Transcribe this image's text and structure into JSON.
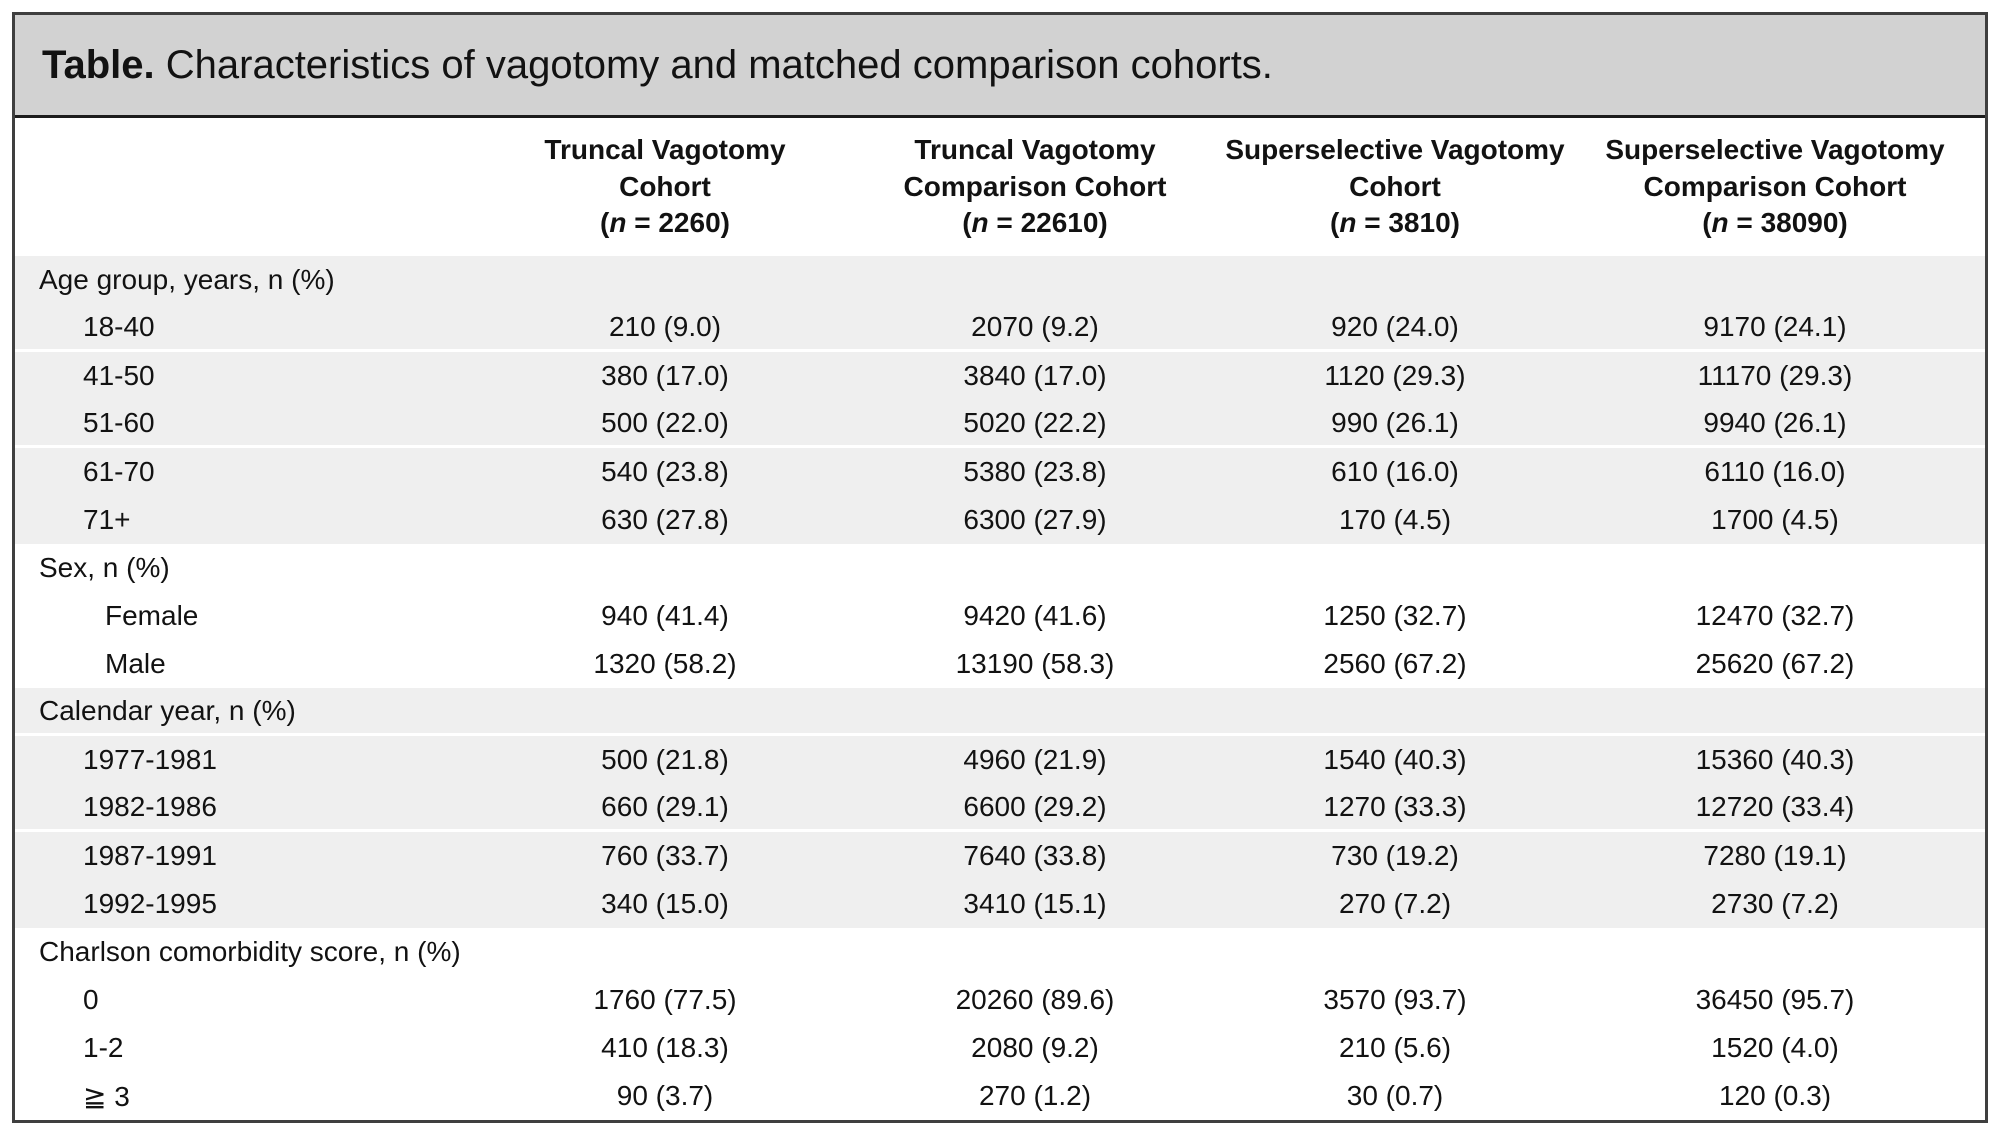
{
  "title": {
    "prefix": "Table.",
    "text": " Characteristics of vagotomy and matched comparison cohorts."
  },
  "table": {
    "columns": [
      {
        "line1": "Truncal Vagotomy",
        "line2": "Cohort",
        "n_open": "(",
        "n_symbol": "n",
        "n_rest": " = 2260)"
      },
      {
        "line1": "Truncal Vagotomy",
        "line2": "Comparison Cohort",
        "n_open": "(",
        "n_symbol": "n",
        "n_rest": " = 22610)"
      },
      {
        "line1": "Superselective Vagotomy",
        "line2": "Cohort",
        "n_open": "(",
        "n_symbol": "n",
        "n_rest": " = 3810)"
      },
      {
        "line1": "Superselective Vagotomy",
        "line2": "Comparison Cohort",
        "n_open": "(",
        "n_symbol": "n",
        "n_rest": " = 38090)"
      }
    ],
    "sections": [
      {
        "label": "Age group, years, n (%)",
        "shaded": true,
        "divider_after_header": false,
        "divider_after_rows": [
          0,
          2
        ],
        "rows": [
          {
            "label": "18-40",
            "indent": 1,
            "values": [
              "210 (9.0)",
              "2070 (9.2)",
              "920 (24.0)",
              "9170 (24.1)"
            ]
          },
          {
            "label": "41-50",
            "indent": 1,
            "values": [
              "380 (17.0)",
              "3840 (17.0)",
              "1120 (29.3)",
              "11170 (29.3)"
            ]
          },
          {
            "label": "51-60",
            "indent": 1,
            "values": [
              "500 (22.0)",
              "5020 (22.2)",
              "990 (26.1)",
              "9940 (26.1)"
            ]
          },
          {
            "label": "61-70",
            "indent": 1,
            "values": [
              "540 (23.8)",
              "5380 (23.8)",
              "610 (16.0)",
              "6110 (16.0)"
            ]
          },
          {
            "label": "71+",
            "indent": 1,
            "values": [
              "630 (27.8)",
              "6300 (27.9)",
              "170 (4.5)",
              "1700 (4.5)"
            ]
          }
        ]
      },
      {
        "label": "Sex, n (%)",
        "shaded": false,
        "divider_after_header": false,
        "divider_after_rows": [],
        "rows": [
          {
            "label": "Female",
            "indent": 2,
            "values": [
              "940 (41.4)",
              "9420 (41.6)",
              "1250 (32.7)",
              "12470 (32.7)"
            ]
          },
          {
            "label": "Male",
            "indent": 2,
            "values": [
              "1320 (58.2)",
              "13190 (58.3)",
              "2560 (67.2)",
              "25620 (67.2)"
            ]
          }
        ]
      },
      {
        "label": "Calendar year, n (%)",
        "shaded": true,
        "divider_after_header": true,
        "divider_after_rows": [
          1
        ],
        "rows": [
          {
            "label": "1977-1981",
            "indent": 1,
            "values": [
              "500 (21.8)",
              "4960 (21.9)",
              "1540 (40.3)",
              "15360 (40.3)"
            ]
          },
          {
            "label": "1982-1986",
            "indent": 1,
            "values": [
              "660 (29.1)",
              "6600 (29.2)",
              "1270 (33.3)",
              "12720 (33.4)"
            ]
          },
          {
            "label": "1987-1991",
            "indent": 1,
            "values": [
              "760 (33.7)",
              "7640 (33.8)",
              "730 (19.2)",
              "7280 (19.1)"
            ]
          },
          {
            "label": "1992-1995",
            "indent": 1,
            "values": [
              "340 (15.0)",
              "3410 (15.1)",
              "270 (7.2)",
              "2730 (7.2)"
            ]
          }
        ]
      },
      {
        "label": "Charlson comorbidity score, n (%)",
        "shaded": false,
        "divider_after_header": false,
        "divider_after_rows": [],
        "rows": [
          {
            "label": "0",
            "indent": 1,
            "values": [
              "1760 (77.5)",
              "20260 (89.6)",
              "3570 (93.7)",
              "36450 (95.7)"
            ]
          },
          {
            "label": "1-2",
            "indent": 1,
            "values": [
              "410 (18.3)",
              "2080 (9.2)",
              "210 (5.6)",
              "1520 (4.0)"
            ]
          },
          {
            "label": "≧ 3",
            "indent": 1,
            "values": [
              "90 (3.7)",
              "270 (1.2)",
              "30 (0.7)",
              "120 (0.3)"
            ]
          }
        ]
      }
    ]
  },
  "colors": {
    "title_bar_bg": "#d2d2d2",
    "shaded_row_bg": "#efefef",
    "border_dark": "#3f3f3f",
    "text": "#121212"
  }
}
